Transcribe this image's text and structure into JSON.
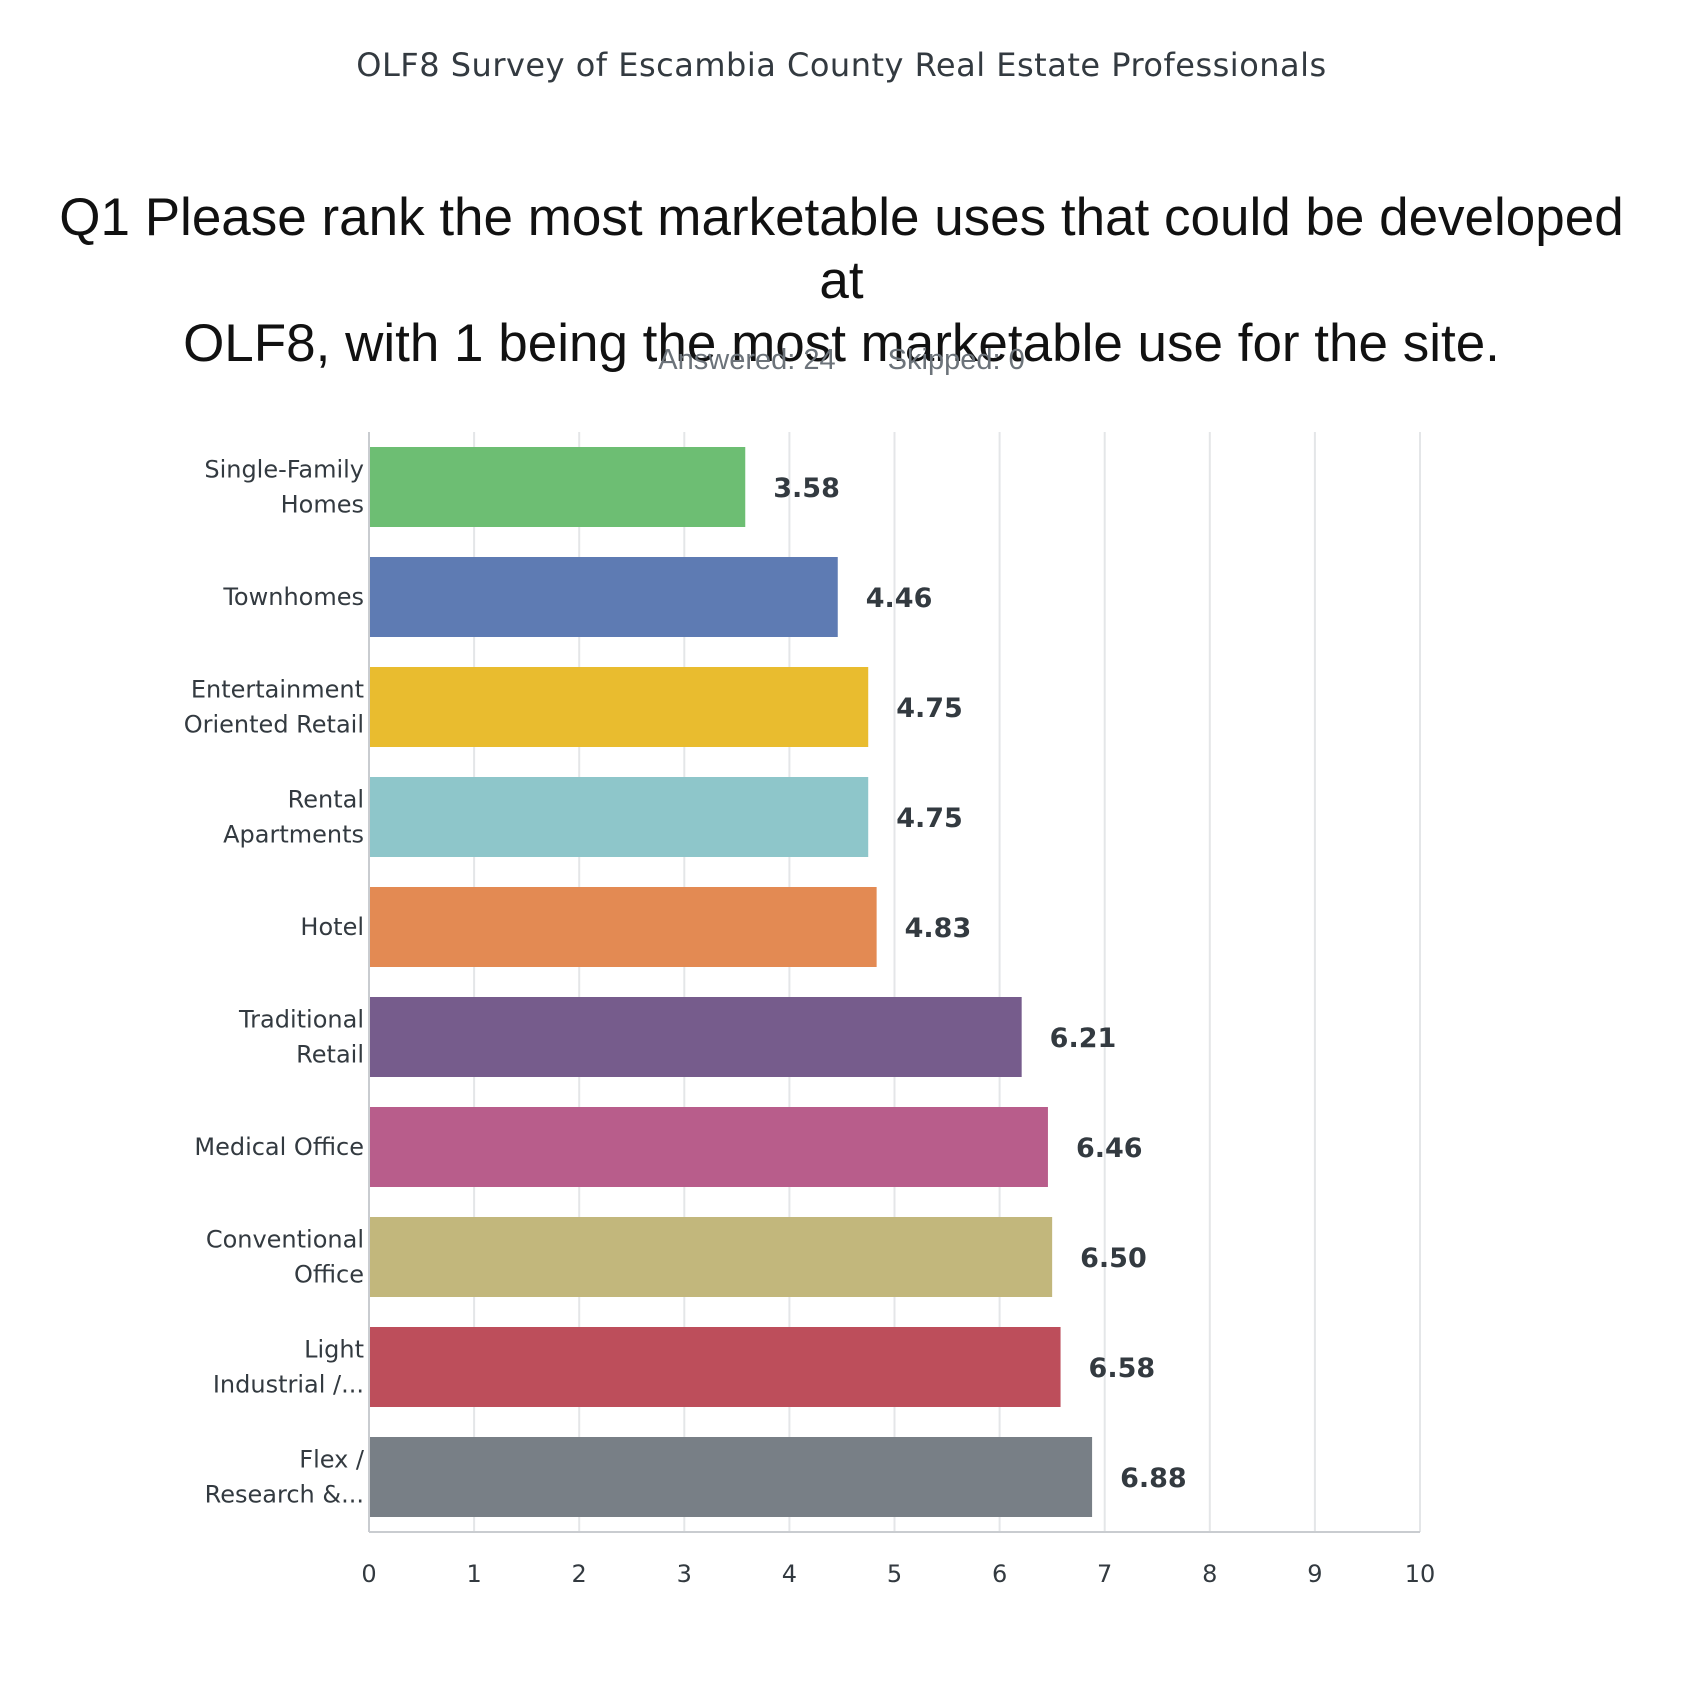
{
  "header": {
    "survey_title": "OLF8 Survey of Escambia County Real Estate Professionals",
    "question_line1": "Q1 Please rank the most marketable uses that could be developed at",
    "question_line2": "OLF8, with 1 being the most marketable use for the site.",
    "answered": "Answered: 24",
    "skipped": "Skipped: 0"
  },
  "chart_data": {
    "type": "bar",
    "orientation": "horizontal",
    "title": "",
    "xlabel": "",
    "ylabel": "",
    "xlim": [
      0,
      10
    ],
    "ticks": [
      "0",
      "1",
      "2",
      "3",
      "4",
      "5",
      "6",
      "7",
      "8",
      "9",
      "10"
    ],
    "grid": true,
    "categories": [
      [
        "Single-Family",
        "Homes"
      ],
      [
        "Townhomes"
      ],
      [
        "Entertainment",
        "Oriented Retail"
      ],
      [
        "Rental",
        "Apartments"
      ],
      [
        "Hotel"
      ],
      [
        "Traditional",
        "Retail"
      ],
      [
        "Medical Office"
      ],
      [
        "Conventional",
        "Office"
      ],
      [
        "Light",
        "Industrial /..."
      ],
      [
        "Flex /",
        "Research &..."
      ]
    ],
    "values": [
      3.58,
      4.46,
      4.75,
      4.75,
      4.83,
      6.21,
      6.46,
      6.5,
      6.58,
      6.88
    ],
    "value_labels": [
      "3.58",
      "4.46",
      "4.75",
      "4.75",
      "4.83",
      "6.21",
      "6.46",
      "6.50",
      "6.58",
      "6.88"
    ],
    "colors": [
      "#6dbe73",
      "#5e7bb3",
      "#e9bc2f",
      "#8ec6ca",
      "#e38a53",
      "#765c8c",
      "#b85d8b",
      "#c2b77c",
      "#bd4e5b",
      "#787f86"
    ]
  }
}
